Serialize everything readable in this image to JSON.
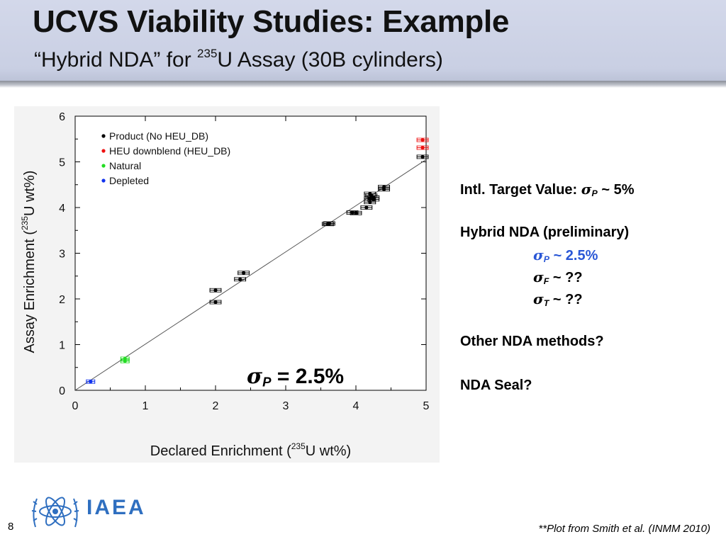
{
  "slide": {
    "title": "UCVS Viability Studies: Example",
    "subtitle_pre": "“Hybrid NDA” for ",
    "subtitle_sup": "235",
    "subtitle_post": "U Assay (30B cylinders)",
    "page_number": "8",
    "citation": "**Plot from Smith et al. (INMM 2010)",
    "logo_text": "IAEA"
  },
  "plot_note": {
    "sigma": "σ",
    "sub": "P",
    "text": " = 2.5%"
  },
  "notes": {
    "target_label": "Intl. Target Value: ",
    "target_value": " ~ 5%",
    "hybrid_label": "Hybrid NDA (preliminary)",
    "sigma_p_value": " ~ 2.5%",
    "sigma_f_value": " ~ ??",
    "sigma_t_value": " ~ ??",
    "other_methods": "Other NDA methods?",
    "nda_seal": "NDA Seal?",
    "sigma_symbol": "σ",
    "sub_p": "P",
    "sub_f": "F",
    "sub_t": "T"
  },
  "chart_data": {
    "type": "scatter",
    "xlabel_pre": "Declared Enrichment (",
    "xlabel_sup": "235",
    "xlabel_post": "U wt%)",
    "ylabel_pre": "Assay Enrichment (",
    "ylabel_sup": "235",
    "ylabel_post": "U wt%)",
    "xlim": [
      0,
      5
    ],
    "ylim": [
      0,
      6
    ],
    "x_ticks": [
      "0",
      "1",
      "2",
      "3",
      "4",
      "5"
    ],
    "y_ticks": [
      "0",
      "1",
      "2",
      "3",
      "4",
      "5",
      "6"
    ],
    "legend_position": "top-left",
    "fit_line": {
      "x": [
        0,
        5
      ],
      "y": [
        0,
        5.05
      ]
    },
    "series": [
      {
        "name": "Product (No HEU_DB)",
        "color": "#000000",
        "x": [
          2.0,
          2.0,
          2.35,
          2.4,
          3.6,
          3.62,
          3.95,
          4.0,
          4.15,
          4.2,
          4.2,
          4.22,
          4.2,
          4.25,
          4.25,
          4.4,
          4.4,
          4.95
        ],
        "y": [
          2.19,
          1.93,
          2.43,
          2.57,
          3.64,
          3.65,
          3.89,
          3.88,
          4.0,
          4.12,
          4.2,
          4.26,
          4.3,
          4.18,
          4.22,
          4.4,
          4.45,
          5.11
        ],
        "xerr": [
          0.08,
          0.08,
          0.08,
          0.08,
          0.08,
          0.08,
          0.08,
          0.08,
          0.08,
          0.08,
          0.08,
          0.08,
          0.08,
          0.08,
          0.08,
          0.08,
          0.08,
          0.08
        ]
      },
      {
        "name": "HEU downblend (HEU_DB)",
        "color": "#ee1111",
        "x": [
          4.95,
          4.95
        ],
        "y": [
          5.31,
          5.48
        ],
        "xerr": [
          0.08,
          0.08
        ]
      },
      {
        "name": "Natural",
        "color": "#22dd22",
        "x": [
          0.71,
          0.71
        ],
        "y": [
          0.64,
          0.69
        ],
        "xerr": [
          0.06,
          0.06
        ]
      },
      {
        "name": "Depleted",
        "color": "#1133ee",
        "x": [
          0.22
        ],
        "y": [
          0.19
        ],
        "xerr": [
          0.06
        ]
      }
    ]
  }
}
